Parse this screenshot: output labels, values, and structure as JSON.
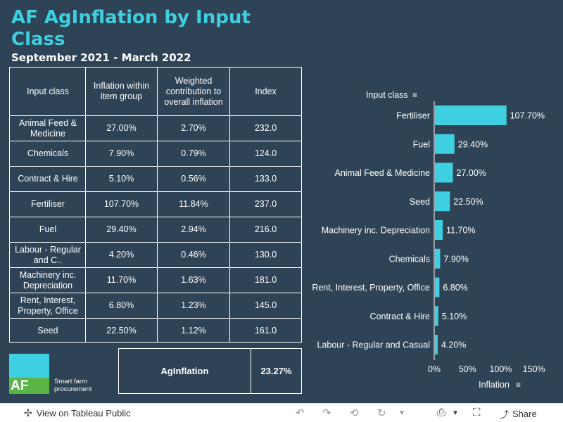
{
  "title": "AF AgInflation by Input Class",
  "subtitle": "September 2021 - March 2022",
  "table": {
    "headers": [
      "Input class",
      "Inflation within item group",
      "Weighted contribution to overall inflation",
      "Index"
    ],
    "rows": [
      {
        "input_class": "Animal Feed & Medicine",
        "inflation": "27.00%",
        "weighted": "2.70%",
        "index": "232.0"
      },
      {
        "input_class": "Chemicals",
        "inflation": "7.90%",
        "weighted": "0.79%",
        "index": "124.0"
      },
      {
        "input_class": "Contract & Hire",
        "inflation": "5.10%",
        "weighted": "0.56%",
        "index": "133.0"
      },
      {
        "input_class": "Fertiliser",
        "inflation": "107.70%",
        "weighted": "11.84%",
        "index": "237.0"
      },
      {
        "input_class": "Fuel",
        "inflation": "29.40%",
        "weighted": "2.94%",
        "index": "216.0"
      },
      {
        "input_class": "Labour - Regular and C..",
        "inflation": "4.20%",
        "weighted": "0.46%",
        "index": "130.0"
      },
      {
        "input_class": "Machinery inc. Depreciation",
        "inflation": "11.70%",
        "weighted": "1.63%",
        "index": "181.0"
      },
      {
        "input_class": "Rent, Interest, Property, Office",
        "inflation": "6.80%",
        "weighted": "1.23%",
        "index": "145.0"
      },
      {
        "input_class": "Seed",
        "inflation": "22.50%",
        "weighted": "1.12%",
        "index": "161.0"
      }
    ]
  },
  "aginflation": {
    "label": "AgInflation",
    "value": "23.27%"
  },
  "logo": {
    "letters": "AF",
    "tagline_1": "Smart farm",
    "tagline_2": "procurement"
  },
  "chart_data": {
    "type": "bar",
    "orientation": "horizontal",
    "categories": [
      "Fertiliser",
      "Fuel",
      "Animal Feed & Medicine",
      "Seed",
      "Machinery inc. Depreciation",
      "Chemicals",
      "Rent, Interest, Property, Office",
      "Contract & Hire",
      "Labour - Regular and Casual"
    ],
    "values": [
      107.7,
      29.4,
      27.0,
      22.5,
      11.7,
      7.9,
      6.8,
      5.1,
      4.2
    ],
    "data_labels": [
      "107.70%",
      "29.40%",
      "27.00%",
      "22.50%",
      "11.70%",
      "7.90%",
      "6.80%",
      "5.10%",
      "4.20%"
    ],
    "xlabel": "Inflation",
    "ylabel": "Input class",
    "xlim": [
      0,
      180
    ],
    "x_ticks": [
      0,
      50,
      100,
      150
    ],
    "x_tick_labels": [
      "0%",
      "50%",
      "100%",
      "150%"
    ],
    "bar_color": "#3ecfe0",
    "grid": false
  },
  "footer": {
    "view_label": "View on Tableau Public",
    "share_label": "Share"
  },
  "colors": {
    "background": "#2e4356",
    "accent": "#3ecfe0",
    "logo_green": "#5ab546"
  }
}
